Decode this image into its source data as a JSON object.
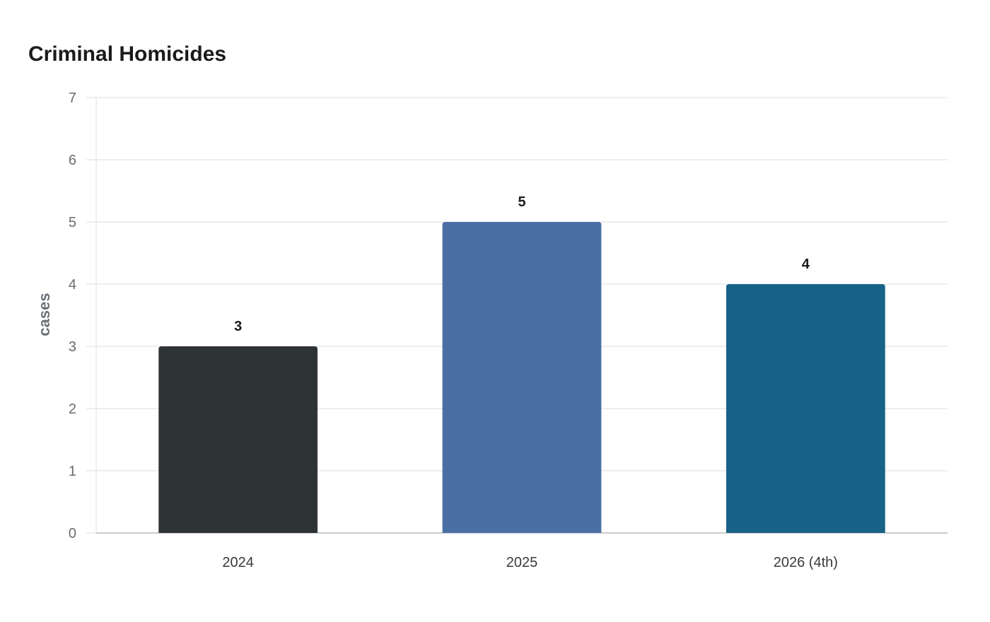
{
  "chart_data": {
    "type": "bar",
    "title": "Criminal Homicides",
    "xlabel": "",
    "ylabel": "cases",
    "categories": [
      "2024",
      "2025",
      "2026 (4th)"
    ],
    "values": [
      3,
      5,
      4
    ],
    "colors": [
      "#2e3436",
      "#4a6fa5",
      "#176287"
    ],
    "ylim": [
      0,
      7
    ],
    "yticks": [
      0,
      1,
      2,
      3,
      4,
      5,
      6,
      7
    ],
    "grid": true,
    "legend": "none",
    "data_labels": true,
    "gridline_color": "#e8e8e8",
    "axis_color": "#cccccc"
  }
}
